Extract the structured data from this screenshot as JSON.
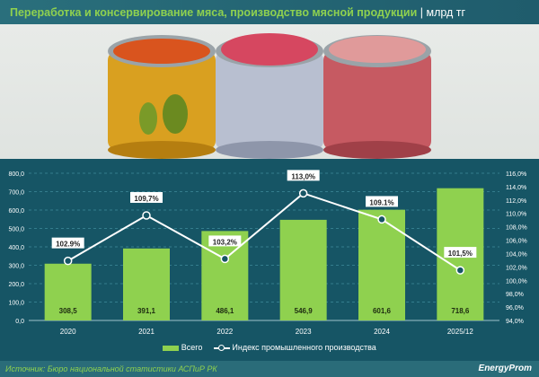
{
  "header": {
    "title": "Переработка и консервирование мяса, производство мясной продукции",
    "unit": "| млрд тг"
  },
  "colors": {
    "bar": "#8fd14f",
    "line": "#ffffff",
    "background": "#165565"
  },
  "chart_data": {
    "type": "bar+line",
    "categories": [
      "2020",
      "2021",
      "2022",
      "2023",
      "2024",
      "2025/12"
    ],
    "series": [
      {
        "name": "Всего",
        "type": "bar",
        "axis": "left",
        "values": [
          308.5,
          391.1,
          486.1,
          546.9,
          601.6,
          718.6
        ],
        "labels": [
          "308,5",
          "391,1",
          "486,1",
          "546,9",
          "601,6",
          "718,6"
        ]
      },
      {
        "name": "Индекс промышленного производства",
        "type": "line",
        "axis": "right",
        "values": [
          102.9,
          109.7,
          103.2,
          113.0,
          109.1,
          101.5
        ],
        "labels": [
          "102.9%",
          "109,7%",
          "103,2%",
          "113,0%",
          "109.1%",
          "101,5%"
        ]
      }
    ],
    "y_left": {
      "range": [
        0,
        800
      ],
      "ticks": [
        "0,0",
        "100,0",
        "200,0",
        "300,0",
        "400,0",
        "500,0",
        "600,0",
        "700,0",
        "800,0"
      ]
    },
    "y_right": {
      "range": [
        94,
        116
      ],
      "ticks": [
        "94,0%",
        "96,0%",
        "98,0%",
        "100,0%",
        "102,0%",
        "104,0%",
        "106,0%",
        "108,0%",
        "110,0%",
        "112,0%",
        "114,0%",
        "116,0%"
      ]
    },
    "grid": true,
    "legend": "bottom"
  },
  "footer": {
    "source": "Источник: Бюро национальной статистики АСПиР РК",
    "logo": "EnergyProm"
  }
}
